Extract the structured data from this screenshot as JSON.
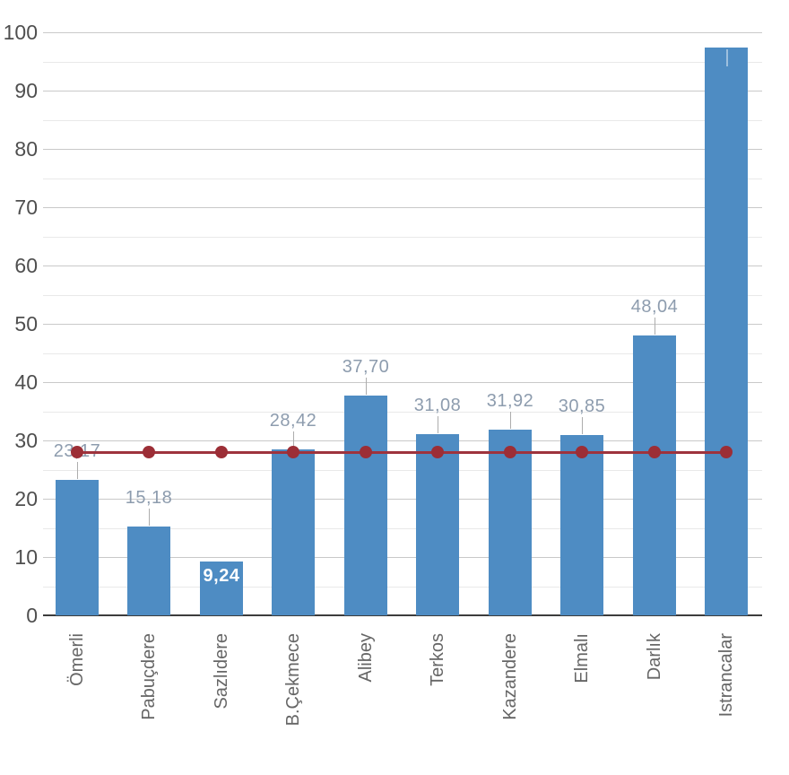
{
  "chart_data": {
    "type": "bar",
    "title": "",
    "xlabel": "",
    "ylabel": "",
    "categories": [
      "Ömerli",
      "Pabuçdere",
      "Sazlıdere",
      "B.Çekmece",
      "Alibey",
      "Terkos",
      "Kazandere",
      "Elmalı",
      "Darlık",
      "Istrancalar"
    ],
    "series": [
      {
        "name": "dam-occupancy-bars",
        "type": "bar",
        "values": [
          23.17,
          15.18,
          9.24,
          28.42,
          37.7,
          31.08,
          31.92,
          30.85,
          48.04,
          97.4
        ],
        "value_labels": [
          "23,17",
          "15,18",
          "9,24",
          "28,42",
          "37,70",
          "31,08",
          "31,92",
          "30,85",
          "48,04",
          ""
        ],
        "inside_label_indexes": [
          2
        ]
      },
      {
        "name": "reference-line",
        "type": "line",
        "values": [
          28,
          28,
          28,
          28,
          28,
          28,
          28,
          28,
          28,
          28
        ]
      }
    ],
    "ylim": [
      0,
      100
    ],
    "ytick_step": 10,
    "minor_tick_step": 5,
    "ytick_labels": [
      "0",
      "10",
      "20",
      "30",
      "40",
      "50",
      "60",
      "70",
      "80",
      "90",
      "100"
    ],
    "grid": "horizontal",
    "legend": "none",
    "colors": {
      "bar": "#4e8cc3",
      "reference_line": "#9e333d",
      "reference_dot": "#9c2e36",
      "value_label": "#8d9cae",
      "inside_value_label": "#ffffff",
      "callout_line": "#adadad",
      "inside_callout_line": "rgba(255,255,255,0.45)",
      "axis_tick_label": "#4f4f4f",
      "x_axis_label": "#666666",
      "grid_major": "#c9c9c9",
      "grid_minor": "#e9e9e9",
      "axis_line": "#3c3c3c",
      "background": "#ffffff"
    }
  }
}
